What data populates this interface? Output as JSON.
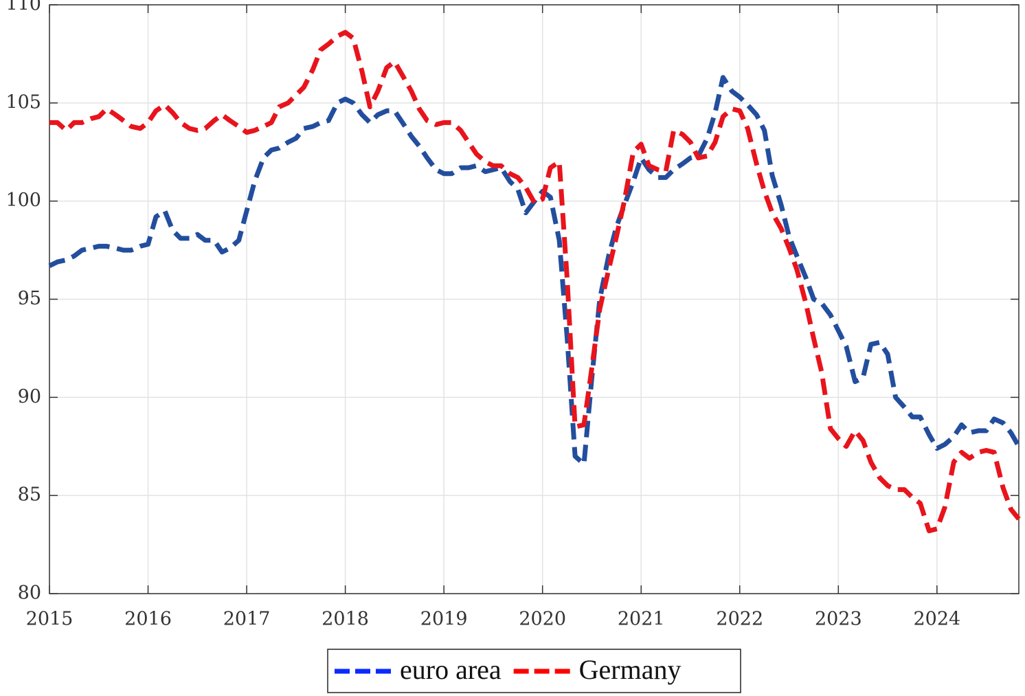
{
  "chart_data": {
    "type": "line",
    "x": [
      2015.0,
      2015.08,
      2015.17,
      2015.25,
      2015.33,
      2015.42,
      2015.5,
      2015.58,
      2015.67,
      2015.75,
      2015.83,
      2015.92,
      2016.0,
      2016.08,
      2016.17,
      2016.25,
      2016.33,
      2016.42,
      2016.5,
      2016.58,
      2016.67,
      2016.75,
      2016.83,
      2016.92,
      2017.0,
      2017.08,
      2017.17,
      2017.25,
      2017.33,
      2017.42,
      2017.5,
      2017.58,
      2017.67,
      2017.75,
      2017.83,
      2017.92,
      2018.0,
      2018.08,
      2018.17,
      2018.25,
      2018.33,
      2018.42,
      2018.5,
      2018.58,
      2018.67,
      2018.75,
      2018.83,
      2018.92,
      2019.0,
      2019.08,
      2019.17,
      2019.25,
      2019.33,
      2019.42,
      2019.5,
      2019.58,
      2019.67,
      2019.75,
      2019.83,
      2019.92,
      2020.0,
      2020.08,
      2020.17,
      2020.25,
      2020.33,
      2020.42,
      2020.5,
      2020.58,
      2020.67,
      2020.75,
      2020.83,
      2020.92,
      2021.0,
      2021.08,
      2021.17,
      2021.25,
      2021.33,
      2021.42,
      2021.5,
      2021.58,
      2021.67,
      2021.75,
      2021.83,
      2021.92,
      2022.0,
      2022.08,
      2022.17,
      2022.25,
      2022.33,
      2022.42,
      2022.5,
      2022.58,
      2022.67,
      2022.75,
      2022.83,
      2022.92,
      2023.0,
      2023.08,
      2023.17,
      2023.25,
      2023.33,
      2023.42,
      2023.5,
      2023.58,
      2023.67,
      2023.75,
      2023.83,
      2023.92,
      2024.0,
      2024.08,
      2024.17,
      2024.25,
      2024.33,
      2024.42,
      2024.5,
      2024.58,
      2024.67,
      2024.75,
      2024.83
    ],
    "series": [
      {
        "name": "euro area",
        "color": "#234e9e",
        "legend_color": "#0a2bff",
        "values": [
          96.7,
          96.9,
          97.0,
          97.2,
          97.5,
          97.6,
          97.7,
          97.7,
          97.6,
          97.5,
          97.5,
          97.7,
          97.8,
          99.2,
          99.5,
          98.5,
          98.1,
          98.1,
          98.3,
          98.0,
          98.0,
          97.4,
          97.6,
          98.0,
          99.5,
          101.0,
          102.2,
          102.6,
          102.7,
          103.0,
          103.2,
          103.7,
          103.8,
          104.0,
          104.1,
          105.0,
          105.2,
          105.0,
          104.4,
          104.0,
          104.4,
          104.6,
          104.6,
          104.0,
          103.3,
          102.8,
          102.2,
          101.6,
          101.4,
          101.4,
          101.7,
          101.7,
          101.8,
          101.5,
          101.6,
          101.7,
          101.0,
          100.6,
          99.4,
          100.0,
          100.5,
          100.2,
          98.0,
          93.0,
          87.0,
          86.6,
          91.0,
          95.0,
          97.2,
          98.7,
          99.8,
          101.0,
          102.2,
          101.6,
          101.2,
          101.2,
          101.6,
          101.9,
          102.2,
          102.3,
          103.2,
          104.5,
          106.3,
          105.6,
          105.3,
          104.9,
          104.4,
          103.6,
          101.3,
          99.8,
          98.2,
          97.2,
          96.1,
          95.0,
          94.8,
          94.2,
          93.4,
          92.6,
          90.8,
          91.0,
          92.7,
          92.8,
          92.2,
          90.0,
          89.5,
          89.0,
          89.0,
          88.1,
          87.4,
          87.6,
          88.0,
          88.6,
          88.2,
          88.3,
          88.3,
          88.9,
          88.7,
          88.2,
          87.5
        ]
      },
      {
        "name": "Germany",
        "color": "#e8141c",
        "legend_color": "#ff0000",
        "values": [
          104.0,
          104.0,
          103.6,
          104.0,
          104.0,
          104.2,
          104.3,
          104.7,
          104.4,
          104.1,
          103.8,
          103.7,
          104.0,
          104.6,
          104.9,
          104.5,
          104.0,
          103.7,
          103.6,
          103.7,
          104.1,
          104.4,
          104.1,
          103.8,
          103.5,
          103.6,
          103.8,
          104.0,
          104.8,
          105.0,
          105.4,
          105.8,
          106.7,
          107.7,
          108.0,
          108.4,
          108.6,
          108.3,
          106.6,
          104.8,
          105.6,
          106.8,
          107.1,
          106.4,
          105.6,
          104.7,
          104.1,
          103.9,
          104.0,
          104.0,
          103.6,
          103.0,
          102.4,
          102.0,
          101.8,
          101.8,
          101.4,
          101.2,
          100.7,
          99.9,
          100.1,
          101.7,
          102.0,
          96.0,
          88.5,
          88.6,
          91.5,
          94.5,
          96.5,
          98.2,
          100.0,
          102.5,
          102.9,
          101.8,
          101.6,
          101.5,
          103.6,
          103.4,
          103.0,
          102.2,
          102.3,
          103.0,
          104.3,
          104.7,
          104.6,
          103.7,
          101.9,
          100.5,
          99.4,
          98.6,
          97.6,
          96.5,
          94.8,
          93.0,
          91.3,
          88.4,
          87.9,
          87.5,
          88.3,
          87.8,
          86.7,
          85.9,
          85.5,
          85.3,
          85.3,
          84.9,
          84.6,
          83.2,
          83.3,
          84.4,
          86.7,
          87.2,
          86.9,
          87.2,
          87.3,
          87.2,
          85.4,
          84.3,
          83.8
        ]
      }
    ],
    "xlim": [
      2015,
      2024.83
    ],
    "xticks": [
      2015,
      2016,
      2017,
      2018,
      2019,
      2020,
      2021,
      2022,
      2023,
      2024
    ],
    "ylim": [
      80,
      110
    ],
    "yticks": [
      80,
      85,
      90,
      95,
      100,
      105,
      110
    ],
    "grid": true,
    "legend": "bottom"
  }
}
